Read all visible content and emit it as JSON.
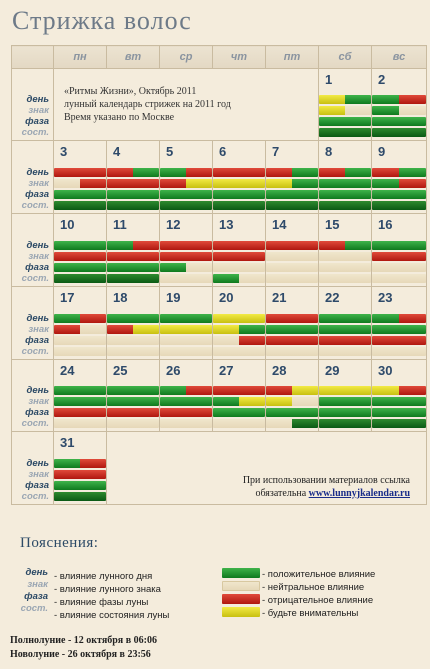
{
  "title": "Стрижка волос",
  "weekdays": [
    "пн",
    "вт",
    "ср",
    "чт",
    "пт",
    "сб",
    "вс"
  ],
  "row_labels": [
    "день",
    "знак",
    "фаза",
    "сост."
  ],
  "info": {
    "line1": "«Ритмы Жизни», Октябрь 2011",
    "line2": "лунный календарь стрижек на 2011 год",
    "line3": "Время указано по Москве"
  },
  "footnote": {
    "line1": "При использовании материалов ссылка",
    "line2_prefix": "обязательна ",
    "link": "www.lunnyjkalendar.ru"
  },
  "legend": {
    "title": "Пояснения:",
    "items": [
      "- влияние лунного дня",
      "- влияние лунного знака",
      "- влияние фазы луны",
      "- влияние состояния луны"
    ],
    "colors": [
      "- положительное влияние",
      "- нейтральное влияние",
      "- отрицательное влияние",
      "- будьте внимательны"
    ]
  },
  "moon": {
    "full": "Полнолуние - 12 октября в 06:06",
    "new": "Новолуние - 26 октября в 23:56"
  },
  "palette": {
    "g": "#1a9a2a",
    "r": "#c8231a",
    "y": "#e0d820",
    "n": "#ece2c6",
    "dg": "#0f6a1c"
  },
  "days": {
    "1": [
      [
        "y",
        "g"
      ],
      [
        "y",
        "n"
      ],
      [
        "g"
      ],
      [
        "dg"
      ]
    ],
    "2": [
      [
        "g",
        "r"
      ],
      [
        "g",
        "n"
      ],
      [
        "g"
      ],
      [
        "dg"
      ]
    ],
    "3": [
      [
        "r"
      ],
      [
        "n",
        "r"
      ],
      [
        "g"
      ],
      [
        "dg"
      ]
    ],
    "4": [
      [
        "r",
        "g"
      ],
      [
        "r"
      ],
      [
        "g"
      ],
      [
        "dg"
      ]
    ],
    "5": [
      [
        "g",
        "r"
      ],
      [
        "r",
        "y"
      ],
      [
        "g"
      ],
      [
        "dg"
      ]
    ],
    "6": [
      [
        "r"
      ],
      [
        "y"
      ],
      [
        "g"
      ],
      [
        "dg"
      ]
    ],
    "7": [
      [
        "r",
        "g"
      ],
      [
        "y",
        "g"
      ],
      [
        "g"
      ],
      [
        "dg"
      ]
    ],
    "8": [
      [
        "r",
        "g"
      ],
      [
        "g"
      ],
      [
        "g"
      ],
      [
        "dg"
      ]
    ],
    "9": [
      [
        "r",
        "g"
      ],
      [
        "g",
        "r"
      ],
      [
        "g"
      ],
      [
        "dg"
      ]
    ],
    "10": [
      [
        "g"
      ],
      [
        "r"
      ],
      [
        "g"
      ],
      [
        "dg"
      ]
    ],
    "11": [
      [
        "g",
        "r"
      ],
      [
        "r"
      ],
      [
        "g"
      ],
      [
        "dg"
      ]
    ],
    "12": [
      [
        "r"
      ],
      [
        "r"
      ],
      [
        "g",
        "n"
      ],
      [
        "n"
      ]
    ],
    "13": [
      [
        "r"
      ],
      [
        "r"
      ],
      [
        "n"
      ],
      [
        "g",
        "n"
      ]
    ],
    "14": [
      [
        "r"
      ],
      [
        "n"
      ],
      [
        "n"
      ],
      [
        "n"
      ]
    ],
    "15": [
      [
        "r",
        "g"
      ],
      [
        "n"
      ],
      [
        "n"
      ],
      [
        "n"
      ]
    ],
    "16": [
      [
        "g"
      ],
      [
        "r"
      ],
      [
        "n"
      ],
      [
        "n"
      ]
    ],
    "17": [
      [
        "g",
        "r"
      ],
      [
        "r",
        "n"
      ],
      [
        "n"
      ],
      [
        "n"
      ]
    ],
    "18": [
      [
        "g"
      ],
      [
        "r",
        "y"
      ],
      [
        "n"
      ],
      [
        "n"
      ]
    ],
    "19": [
      [
        "g"
      ],
      [
        "y"
      ],
      [
        "n"
      ],
      [
        "n"
      ]
    ],
    "20": [
      [
        "y"
      ],
      [
        "y",
        "g"
      ],
      [
        "n",
        "r"
      ],
      [
        "n"
      ]
    ],
    "21": [
      [
        "r"
      ],
      [
        "g"
      ],
      [
        "r"
      ],
      [
        "n"
      ]
    ],
    "22": [
      [
        "g"
      ],
      [
        "g"
      ],
      [
        "r"
      ],
      [
        "n"
      ]
    ],
    "23": [
      [
        "g",
        "r"
      ],
      [
        "g"
      ],
      [
        "r"
      ],
      [
        "n"
      ]
    ],
    "24": [
      [
        "g"
      ],
      [
        "g"
      ],
      [
        "r"
      ],
      [
        "n"
      ]
    ],
    "25": [
      [
        "g"
      ],
      [
        "g"
      ],
      [
        "r"
      ],
      [
        "n"
      ]
    ],
    "26": [
      [
        "g",
        "r"
      ],
      [
        "g"
      ],
      [
        "r"
      ],
      [
        "n"
      ]
    ],
    "27": [
      [
        "r"
      ],
      [
        "g",
        "y"
      ],
      [
        "g"
      ],
      [
        "n"
      ]
    ],
    "28": [
      [
        "r",
        "y"
      ],
      [
        "y",
        "n"
      ],
      [
        "g"
      ],
      [
        "n",
        "dg"
      ]
    ],
    "29": [
      [
        "y"
      ],
      [
        "g"
      ],
      [
        "g"
      ],
      [
        "dg"
      ]
    ],
    "30": [
      [
        "y",
        "r"
      ],
      [
        "g"
      ],
      [
        "g"
      ],
      [
        "dg"
      ]
    ],
    "31": [
      [
        "g",
        "r"
      ],
      [
        "r"
      ],
      [
        "g"
      ],
      [
        "dg"
      ]
    ]
  }
}
